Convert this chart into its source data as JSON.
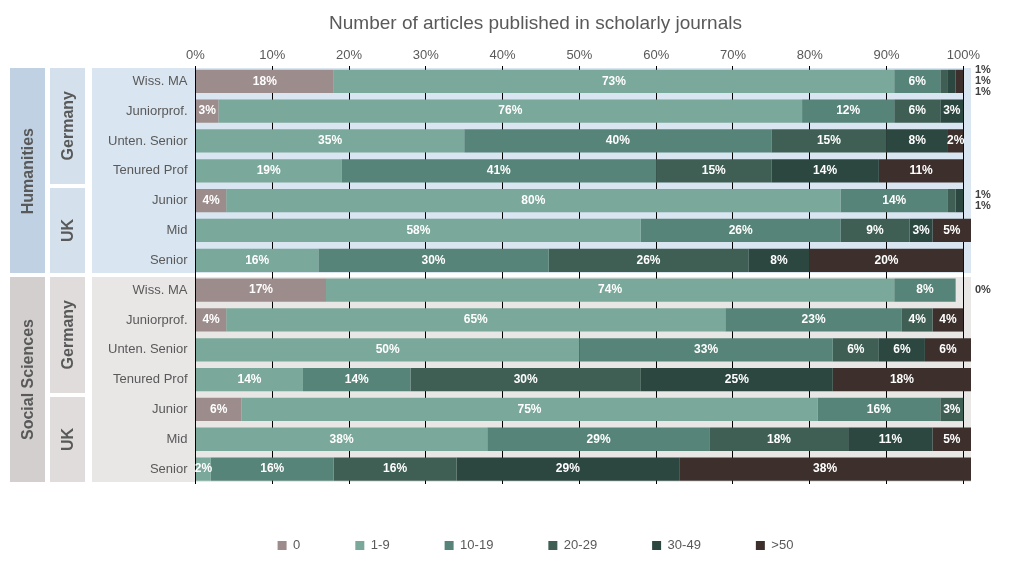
{
  "chart_data": {
    "type": "bar",
    "orientation": "horizontal",
    "stacked": true,
    "title": "Number of articles published in scholarly journals",
    "categories": [
      "Wiss. MA",
      "Juniorprof.",
      "Unten. Senior",
      "Tenured Prof",
      "Junior",
      "Mid",
      "Senior",
      "Wiss. MA",
      "Juniorprof.",
      "Unten. Senior",
      "Tenured Prof",
      "Junior",
      "Mid",
      "Senior"
    ],
    "annotations": [
      "Humanities",
      "Germany",
      "UK",
      "Social Sciences",
      "Germany",
      "UK"
    ],
    "xlim": [
      0,
      101
    ],
    "xticks": [
      {
        "value": 0,
        "label": "0%"
      },
      {
        "value": 10,
        "label": "10%"
      },
      {
        "value": 20,
        "label": "20%"
      },
      {
        "value": 30,
        "label": "30%"
      },
      {
        "value": 40,
        "label": "40%"
      },
      {
        "value": 50,
        "label": "50%"
      },
      {
        "value": 60,
        "label": "60%"
      },
      {
        "value": 70,
        "label": "70%"
      },
      {
        "value": 80,
        "label": "80%"
      },
      {
        "value": 90,
        "label": "90%"
      },
      {
        "value": 100,
        "label": "100%"
      }
    ],
    "grid": "x",
    "legend": "bottom",
    "series": [
      {
        "name": "0",
        "color": "#9c8c8c",
        "values": [
          18,
          3,
          null,
          null,
          4,
          null,
          null,
          17,
          4,
          null,
          null,
          6,
          null,
          null
        ],
        "value_labels": [
          "18%",
          "3%",
          null,
          null,
          "4%",
          null,
          null,
          "17%",
          "4%",
          null,
          null,
          "6%",
          null,
          null
        ]
      },
      {
        "name": "1-9",
        "color": "#7aa89a",
        "values": [
          73,
          76,
          35,
          19,
          80,
          58,
          16,
          74,
          65,
          50,
          14,
          75,
          38,
          2
        ],
        "value_labels": [
          "73%",
          "76%",
          "35%",
          "19%",
          "80%",
          "58%",
          "16%",
          "74%",
          "65%",
          "50%",
          "14%",
          "75%",
          "38%",
          "2%"
        ]
      },
      {
        "name": "10-19",
        "color": "#578478",
        "values": [
          6,
          12,
          40,
          41,
          14,
          26,
          30,
          8,
          23,
          33,
          14,
          16,
          29,
          16
        ],
        "value_labels": [
          "6%",
          "12%",
          "40%",
          "41%",
          "14%",
          "26%",
          "30%",
          "8%",
          "23%",
          "33%",
          "14%",
          "16%",
          "29%",
          "16%"
        ]
      },
      {
        "name": "20-29",
        "color": "#3f5f55",
        "values": [
          1,
          6,
          15,
          15,
          1,
          9,
          26,
          0,
          4,
          6,
          30,
          3,
          18,
          16
        ],
        "value_labels": [
          "1%",
          "6%",
          "15%",
          "15%",
          "1%",
          "9%",
          "26%",
          "0%",
          "4%",
          "6%",
          "30%",
          "3%",
          "18%",
          "16%"
        ]
      },
      {
        "name": "30-49",
        "color": "#2c4640",
        "values": [
          1,
          3,
          8,
          14,
          1,
          3,
          8,
          null,
          null,
          6,
          25,
          null,
          11,
          29
        ],
        "value_labels": [
          "1%",
          "3%",
          "8%",
          "14%",
          "1%",
          "3%",
          "8%",
          null,
          null,
          "6%",
          "25%",
          null,
          "11%",
          "29%"
        ]
      },
      {
        "name": ">50",
        "color": "#3d302c",
        "values": [
          1,
          null,
          2,
          11,
          null,
          5,
          20,
          null,
          4,
          6,
          18,
          null,
          5,
          38
        ],
        "value_labels": [
          "1%",
          null,
          "2%",
          "11%",
          null,
          "5%",
          "20%",
          null,
          "4%",
          "6%",
          "18%",
          null,
          "5%",
          "38%"
        ]
      }
    ]
  }
}
